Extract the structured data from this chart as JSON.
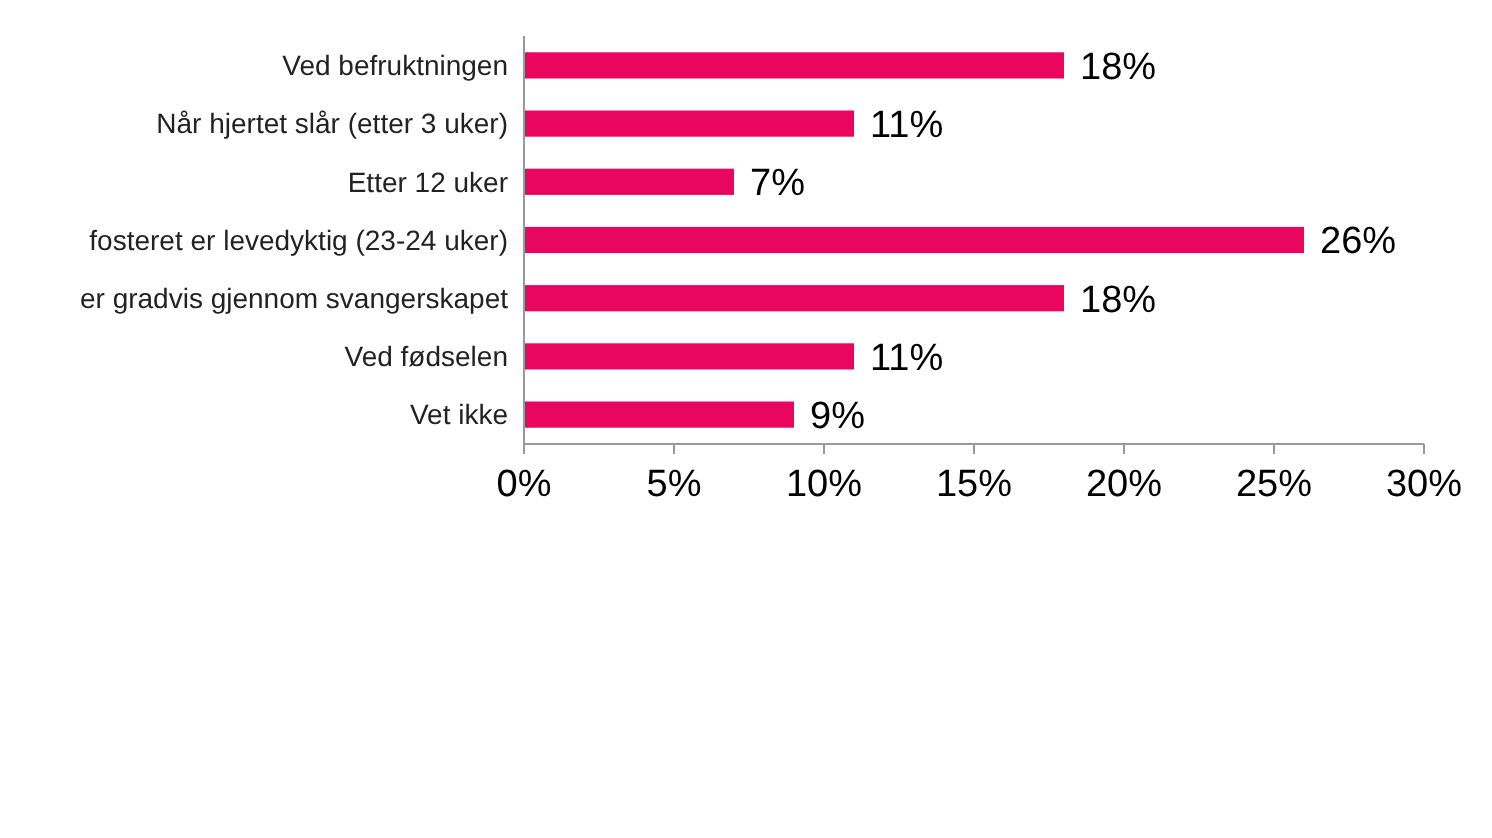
{
  "chart_data": {
    "type": "bar",
    "orientation": "horizontal",
    "categories": [
      "Ved befruktningen",
      "Når hjertet slår (etter 3 uker)",
      "Etter 12 uker",
      "fosteret er levedyktig (23-24 uker)",
      "er gradvis gjennom svangerskapet",
      "Ved fødselen",
      "Vet ikke"
    ],
    "values": [
      18,
      11,
      7,
      26,
      18,
      11,
      9
    ],
    "value_labels": [
      "18%",
      "11%",
      "7%",
      "26%",
      "18%",
      "11%",
      "9%"
    ],
    "color": "#e8065e",
    "xlim": [
      0,
      30
    ],
    "xticks": [
      {
        "value": 0,
        "label": "0%"
      },
      {
        "value": 5,
        "label": "5%"
      },
      {
        "value": 10,
        "label": "10%"
      },
      {
        "value": 15,
        "label": "15%"
      },
      {
        "value": 20,
        "label": "20%"
      },
      {
        "value": 25,
        "label": "25%"
      },
      {
        "value": 30,
        "label": "30%"
      }
    ],
    "grid": false
  }
}
